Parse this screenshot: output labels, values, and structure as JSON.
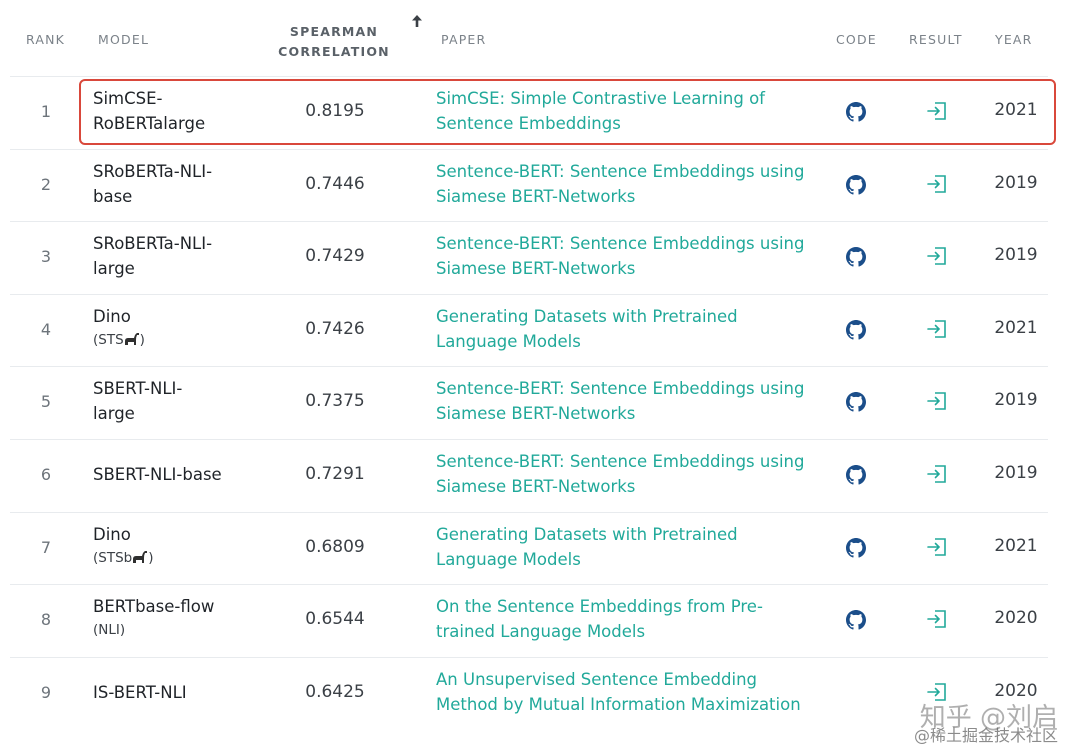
{
  "header": {
    "rank": "RANK",
    "model": "MODEL",
    "score": "SPEARMAN CORRELATION",
    "paper": "PAPER",
    "code": "CODE",
    "result": "RESULT",
    "year": "YEAR"
  },
  "colors": {
    "link": "#21a99a",
    "highlight": "#d9483b",
    "github": "#1b4e8a",
    "result_icon": "#21a99a"
  },
  "rows": [
    {
      "rank": "1",
      "model": "SimCSE-RoBERTalarge",
      "sub": "",
      "score": "0.8195",
      "paper": "SimCSE: Simple Contrastive Learning of Sentence Embeddings",
      "code": true,
      "year": "2021"
    },
    {
      "rank": "2",
      "model": "SRoBERTa-NLI-base",
      "sub": "",
      "score": "0.7446",
      "paper": "Sentence-BERT: Sentence Embeddings using Siamese BERT-Networks",
      "code": true,
      "year": "2019"
    },
    {
      "rank": "3",
      "model": "SRoBERTa-NLI-large",
      "sub": "",
      "score": "0.7429",
      "paper": "Sentence-BERT: Sentence Embeddings using Siamese BERT-Networks",
      "code": true,
      "year": "2019"
    },
    {
      "rank": "4",
      "model": "Dino",
      "sub": "(STS",
      "sub_end": ")",
      "score": "0.7426",
      "paper": "Generating Datasets with Pretrained Language Models",
      "code": true,
      "year": "2021"
    },
    {
      "rank": "5",
      "model": "SBERT-NLI-large",
      "sub": "",
      "score": "0.7375",
      "paper": "Sentence-BERT: Sentence Embeddings using Siamese BERT-Networks",
      "code": true,
      "year": "2019"
    },
    {
      "rank": "6",
      "model": "SBERT-NLI-base",
      "sub": "",
      "score": "0.7291",
      "paper": "Sentence-BERT: Sentence Embeddings using Siamese BERT-Networks",
      "code": true,
      "year": "2019"
    },
    {
      "rank": "7",
      "model": "Dino",
      "sub": "(STSb",
      "sub_end": ")",
      "score": "0.6809",
      "paper": "Generating Datasets with Pretrained Language Models",
      "code": true,
      "year": "2021"
    },
    {
      "rank": "8",
      "model": "BERTbase-flow",
      "sub": "(NLI)",
      "score": "0.6544",
      "paper": "On the Sentence Embeddings from Pre-trained Language Models",
      "code": true,
      "year": "2020"
    },
    {
      "rank": "9",
      "model": "IS-BERT-NLI",
      "sub": "",
      "score": "0.6425",
      "paper": "An Unsupervised Sentence Embedding Method by Mutual Information Maximization",
      "code": false,
      "year": "2020"
    }
  ],
  "watermark": {
    "main": "知乎 @刘启",
    "sub": "@稀土掘金技术社区"
  }
}
